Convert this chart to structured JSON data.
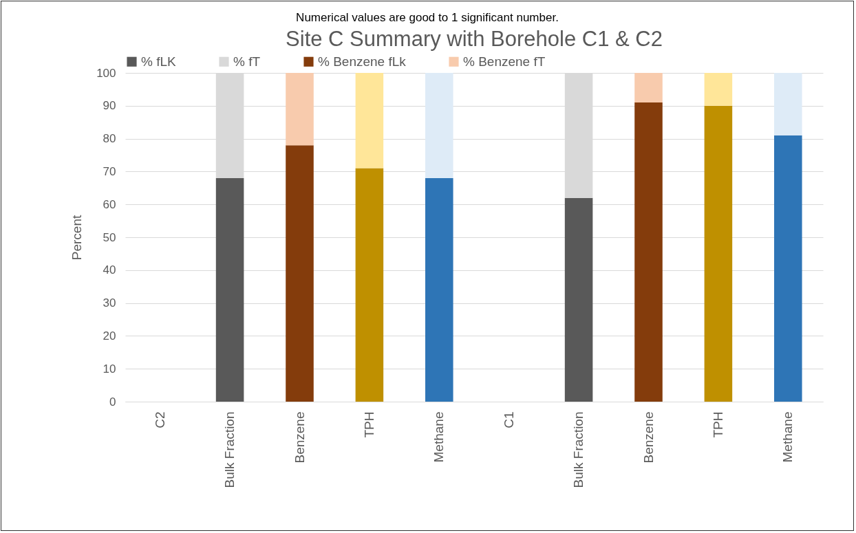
{
  "chart_data": {
    "type": "bar",
    "stacked": true,
    "title": "Site C Summary with Borehole C1 & C2",
    "annotations": [
      "Numerical values are good to 1 significant number."
    ],
    "ylabel": "Percent",
    "categories": [
      "C2",
      "Bulk Fraction",
      "Benzene",
      "TPH",
      "Methane",
      "C1",
      "Bulk Fraction",
      "Benzene",
      "TPH",
      "Methane"
    ],
    "series": [
      {
        "name": "% fLK",
        "color": "#595959",
        "values": [
          null,
          68,
          null,
          null,
          null,
          null,
          62,
          null,
          null,
          null
        ]
      },
      {
        "name": "% fT",
        "color": "#d9d9d9",
        "values": [
          null,
          32,
          null,
          null,
          null,
          null,
          38,
          null,
          null,
          null
        ]
      },
      {
        "name": "% Benzene fLk",
        "color": "#843c0c",
        "values": [
          null,
          null,
          78,
          null,
          null,
          null,
          null,
          91,
          null,
          null
        ]
      },
      {
        "name": "% Benzene fT",
        "color": "#f8cbad",
        "values": [
          null,
          null,
          22,
          null,
          null,
          null,
          null,
          9,
          null,
          null
        ]
      },
      {
        "color": "#bf9000",
        "values": [
          null,
          null,
          null,
          71,
          null,
          null,
          null,
          null,
          90,
          null
        ]
      },
      {
        "color": "#ffe699",
        "values": [
          null,
          null,
          null,
          29,
          null,
          null,
          null,
          null,
          10,
          null
        ]
      },
      {
        "color": "#2e75b6",
        "values": [
          null,
          null,
          null,
          null,
          68,
          null,
          null,
          null,
          null,
          81
        ]
      },
      {
        "color": "#deebf7",
        "values": [
          null,
          null,
          null,
          null,
          32,
          null,
          null,
          null,
          null,
          19
        ]
      }
    ],
    "ylim": [
      0,
      100
    ],
    "yticks": [
      0,
      10,
      20,
      30,
      40,
      50,
      60,
      70,
      80,
      90,
      100
    ],
    "grid": "y",
    "legend": "top"
  }
}
